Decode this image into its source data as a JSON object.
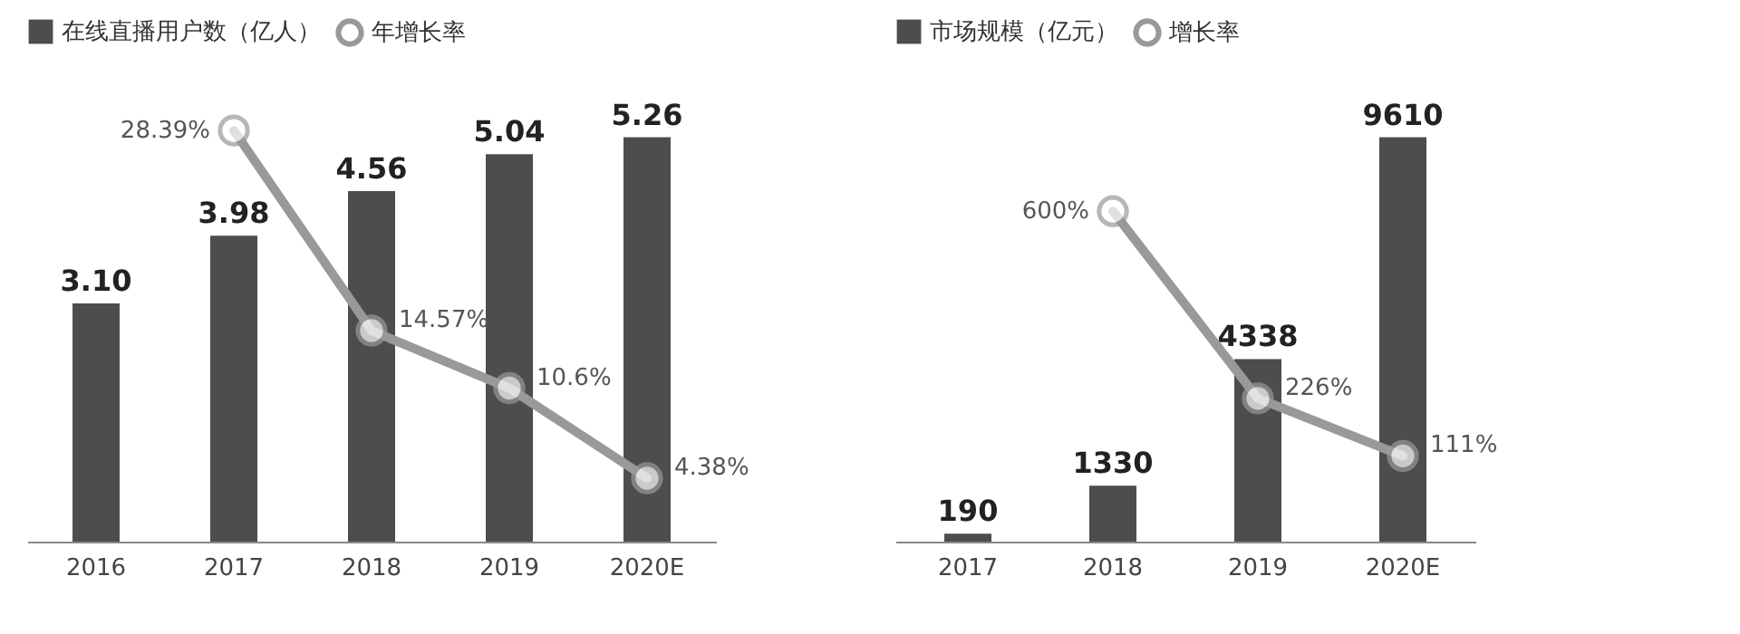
{
  "chart_data": [
    {
      "type": "bar",
      "categories": [
        "2016",
        "2017",
        "2018",
        "2019",
        "2020E"
      ],
      "legend": "top left",
      "marker": "circle",
      "series": [
        {
          "name": "在线直播用户数（亿人）",
          "color": "#4d4d4d",
          "values": [
            3.1,
            3.98,
            4.56,
            5.04,
            5.26
          ],
          "value_labels": [
            "3.10",
            "3.98",
            "4.56",
            "5.04",
            "5.26"
          ]
        },
        {
          "name": "年增长率",
          "type": "line",
          "axis": "y2",
          "color": "#999999",
          "values": [
            null,
            28.39,
            14.57,
            10.6,
            4.38
          ],
          "value_labels": [
            null,
            "28.39%",
            "14.57%",
            "10.6%",
            "4.38%"
          ]
        }
      ]
    },
    {
      "type": "bar",
      "categories": [
        "2017",
        "2018",
        "2019",
        "2020E"
      ],
      "legend": "top",
      "marker": "circle",
      "series": [
        {
          "name": "市场规模（亿元）",
          "color": "#4d4d4d",
          "values": [
            190,
            1330,
            4338,
            9610
          ],
          "value_labels": [
            "190",
            "1330",
            "4338",
            "9610"
          ]
        },
        {
          "name": "增长率",
          "type": "line",
          "axis": "y2",
          "color": "#999999",
          "values": [
            null,
            600,
            226,
            111
          ],
          "value_labels": [
            null,
            "600%",
            "226%",
            "111%"
          ]
        }
      ]
    }
  ]
}
